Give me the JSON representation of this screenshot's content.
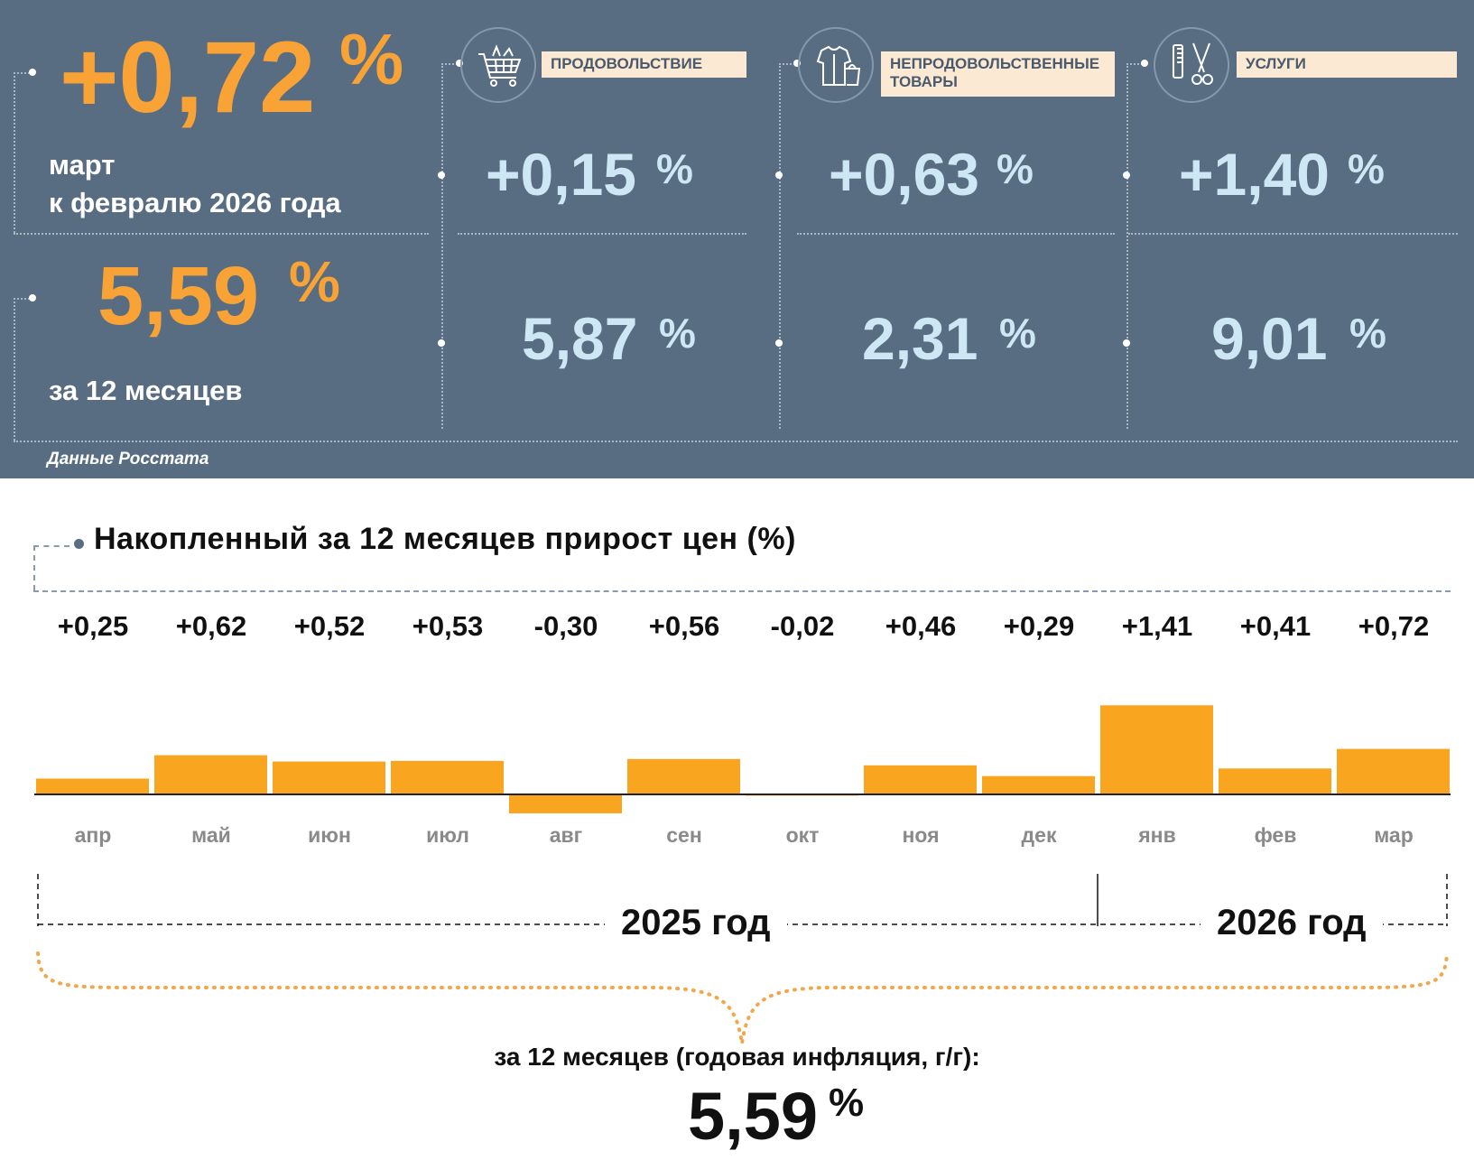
{
  "monthly": {
    "value": "+0,72",
    "unit": "%",
    "label_line1": "март",
    "label_line2": "к февралю 2026 года"
  },
  "annual_top": {
    "value": "5,59",
    "unit": "%",
    "label": "за 12 месяцев"
  },
  "categories": [
    {
      "label": "ПРОДОВОЛЬСТВИЕ",
      "icon": "shopping-basket-icon",
      "monthly": "+0,15",
      "annual": "5,87",
      "unit": "%"
    },
    {
      "label": "НЕПРОДОВОЛЬСТВЕННЫЕ ТОВАРЫ",
      "icon": "clothes-bag-icon",
      "monthly": "+0,63",
      "annual": "2,31",
      "unit": "%"
    },
    {
      "label": "УСЛУГИ",
      "icon": "comb-scissors-icon",
      "monthly": "+1,40",
      "annual": "9,01",
      "unit": "%"
    }
  ],
  "source": "Данные Росстата",
  "colors": {
    "panel": "#596d82",
    "accent_orange": "#f9a336",
    "value_blue": "#cde7f4",
    "label_bg": "#fbe9d4",
    "bar": "#f9a51f"
  },
  "chart_data": {
    "type": "bar",
    "title": "Накопленный за 12 месяцев прирост цен (%)",
    "categories": [
      "апр",
      "май",
      "июн",
      "июл",
      "авг",
      "сен",
      "окт",
      "ноя",
      "дек",
      "янв",
      "фев",
      "мар"
    ],
    "values": [
      0.25,
      0.62,
      0.52,
      0.53,
      -0.3,
      0.56,
      -0.02,
      0.46,
      0.29,
      1.41,
      0.41,
      0.72
    ],
    "value_labels": [
      "+0,25",
      "+0,62",
      "+0,52",
      "+0,53",
      "-0,30",
      "+0,56",
      "-0,02",
      "+0,46",
      "+0,29",
      "+1,41",
      "+0,41",
      "+0,72"
    ],
    "year_groups": [
      {
        "label": "2025 год",
        "months": 9
      },
      {
        "label": "2026 год",
        "months": 3
      }
    ],
    "annual_text": "за 12 месяцев (годовая инфляция, г/г):",
    "annual_value": "5,59",
    "annual_unit": "%",
    "grid": false
  }
}
